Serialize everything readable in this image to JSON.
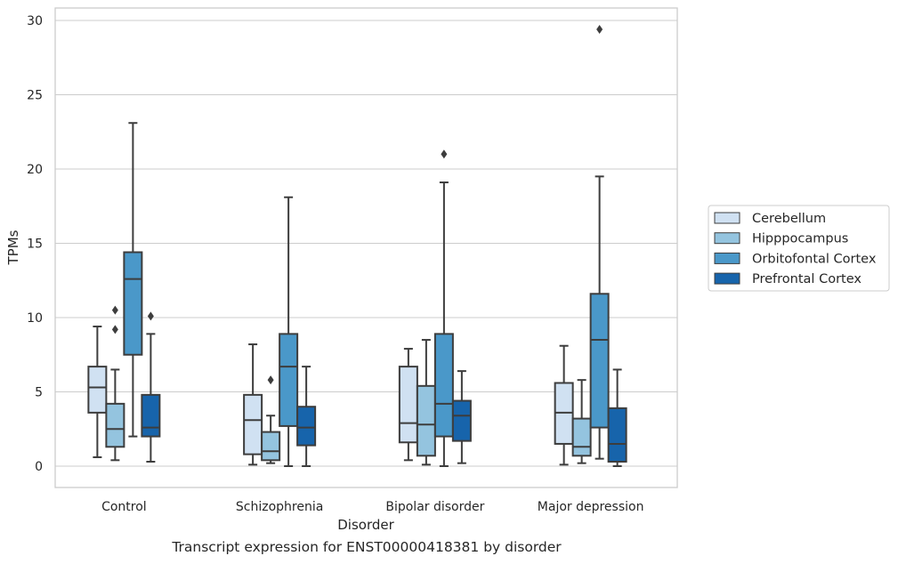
{
  "chart_data": {
    "type": "box",
    "caption": "Transcript expression for ENST00000418381 by disorder",
    "xlabel": "Disorder",
    "ylabel": "TPMs",
    "ylim": [
      -1.4,
      31
    ],
    "yticks": [
      0,
      5,
      10,
      15,
      20,
      25,
      30
    ],
    "grid": true,
    "legend_position": "right-outside",
    "categories": [
      "Control",
      "Schizophrenia",
      "Bipolar disorder",
      "Major depression"
    ],
    "series": [
      {
        "name": "Cerebellum",
        "color": "#d0e1f2",
        "boxes": [
          {
            "whisker_low": 0.6,
            "q1": 3.6,
            "median": 5.3,
            "q3": 6.7,
            "whisker_high": 9.4,
            "outliers": []
          },
          {
            "whisker_low": 0.1,
            "q1": 0.8,
            "median": 3.1,
            "q3": 4.8,
            "whisker_high": 8.2,
            "outliers": []
          },
          {
            "whisker_low": 0.4,
            "q1": 1.6,
            "median": 2.9,
            "q3": 6.7,
            "whisker_high": 7.9,
            "outliers": []
          },
          {
            "whisker_low": 0.1,
            "q1": 1.5,
            "median": 3.6,
            "q3": 5.6,
            "whisker_high": 8.1,
            "outliers": []
          }
        ]
      },
      {
        "name": "Hipppocampus",
        "color": "#94c4df",
        "boxes": [
          {
            "whisker_low": 0.4,
            "q1": 1.3,
            "median": 2.5,
            "q3": 4.2,
            "whisker_high": 6.5,
            "outliers": [
              9.2,
              10.5
            ]
          },
          {
            "whisker_low": 0.2,
            "q1": 0.4,
            "median": 1.0,
            "q3": 2.3,
            "whisker_high": 3.4,
            "outliers": [
              5.8
            ]
          },
          {
            "whisker_low": 0.1,
            "q1": 0.7,
            "median": 2.8,
            "q3": 5.4,
            "whisker_high": 8.5,
            "outliers": []
          },
          {
            "whisker_low": 0.2,
            "q1": 0.7,
            "median": 1.3,
            "q3": 3.2,
            "whisker_high": 5.8,
            "outliers": []
          }
        ]
      },
      {
        "name": "Orbitofontal Cortex",
        "color": "#4a98c9",
        "boxes": [
          {
            "whisker_low": 2.0,
            "q1": 7.5,
            "median": 12.6,
            "q3": 14.4,
            "whisker_high": 23.1,
            "outliers": []
          },
          {
            "whisker_low": 0.0,
            "q1": 2.7,
            "median": 6.7,
            "q3": 8.9,
            "whisker_high": 18.1,
            "outliers": []
          },
          {
            "whisker_low": 0.0,
            "q1": 2.0,
            "median": 4.2,
            "q3": 8.9,
            "whisker_high": 19.1,
            "outliers": [
              21.0
            ]
          },
          {
            "whisker_low": 0.5,
            "q1": 2.6,
            "median": 8.5,
            "q3": 11.6,
            "whisker_high": 19.5,
            "outliers": [
              29.4
            ]
          }
        ]
      },
      {
        "name": "Prefrontal Cortex",
        "color": "#1764ab",
        "boxes": [
          {
            "whisker_low": 0.3,
            "q1": 2.0,
            "median": 2.6,
            "q3": 4.8,
            "whisker_high": 8.9,
            "outliers": [
              10.1
            ]
          },
          {
            "whisker_low": 0.0,
            "q1": 1.4,
            "median": 2.6,
            "q3": 4.0,
            "whisker_high": 6.7,
            "outliers": []
          },
          {
            "whisker_low": 0.2,
            "q1": 1.7,
            "median": 3.4,
            "q3": 4.4,
            "whisker_high": 6.4,
            "outliers": []
          },
          {
            "whisker_low": 0.0,
            "q1": 0.3,
            "median": 1.5,
            "q3": 3.9,
            "whisker_high": 6.5,
            "outliers": []
          }
        ]
      }
    ]
  }
}
